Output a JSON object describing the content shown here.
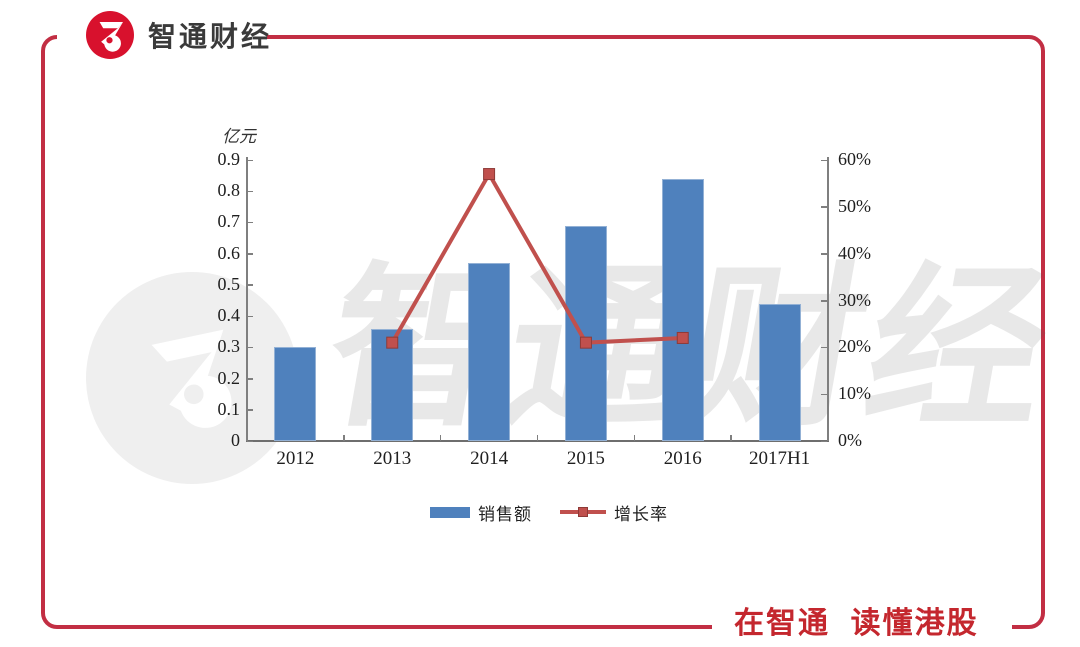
{
  "brand": {
    "logo_text": "智通财经",
    "slogan": "在智通  读懂港股"
  },
  "watermark": {
    "text": "智通财经",
    "mark": "Z"
  },
  "chart_data": {
    "type": "combo bar+line",
    "categories": [
      "2012",
      "2013",
      "2014",
      "2015",
      "2016",
      "2017H1"
    ],
    "series": [
      {
        "name": "销售额",
        "type": "bar",
        "axis": "left",
        "color": "#4f81bd",
        "values": [
          0.3,
          0.36,
          0.57,
          0.69,
          0.84,
          0.44
        ]
      },
      {
        "name": "增长率",
        "type": "line",
        "axis": "right",
        "unit": "%",
        "color": "#c0504d",
        "values": [
          null,
          21,
          57,
          21,
          22,
          null
        ]
      }
    ],
    "left_axis": {
      "title": "亿元",
      "min": 0,
      "max": 0.9,
      "step": 0.1,
      "ticks": [
        "0",
        "0.1",
        "0.2",
        "0.3",
        "0.4",
        "0.5",
        "0.6",
        "0.7",
        "0.8",
        "0.9"
      ]
    },
    "right_axis": {
      "min": 0,
      "max": 60,
      "step": 10,
      "ticks": [
        "0%",
        "10%",
        "20%",
        "30%",
        "40%",
        "50%",
        "60%"
      ]
    },
    "legend_position": "bottom",
    "grid": false
  },
  "colors": {
    "bar": "#4f81bd",
    "bar_border": "#93b1d5",
    "line": "#c0504d",
    "marker_border": "#8e3a37",
    "axis": "#7f7f7f",
    "text": "#1f1f1f",
    "logo_red": "#d8112d",
    "frame_red": "#c22e43",
    "slogan_red": "#c4272e"
  }
}
